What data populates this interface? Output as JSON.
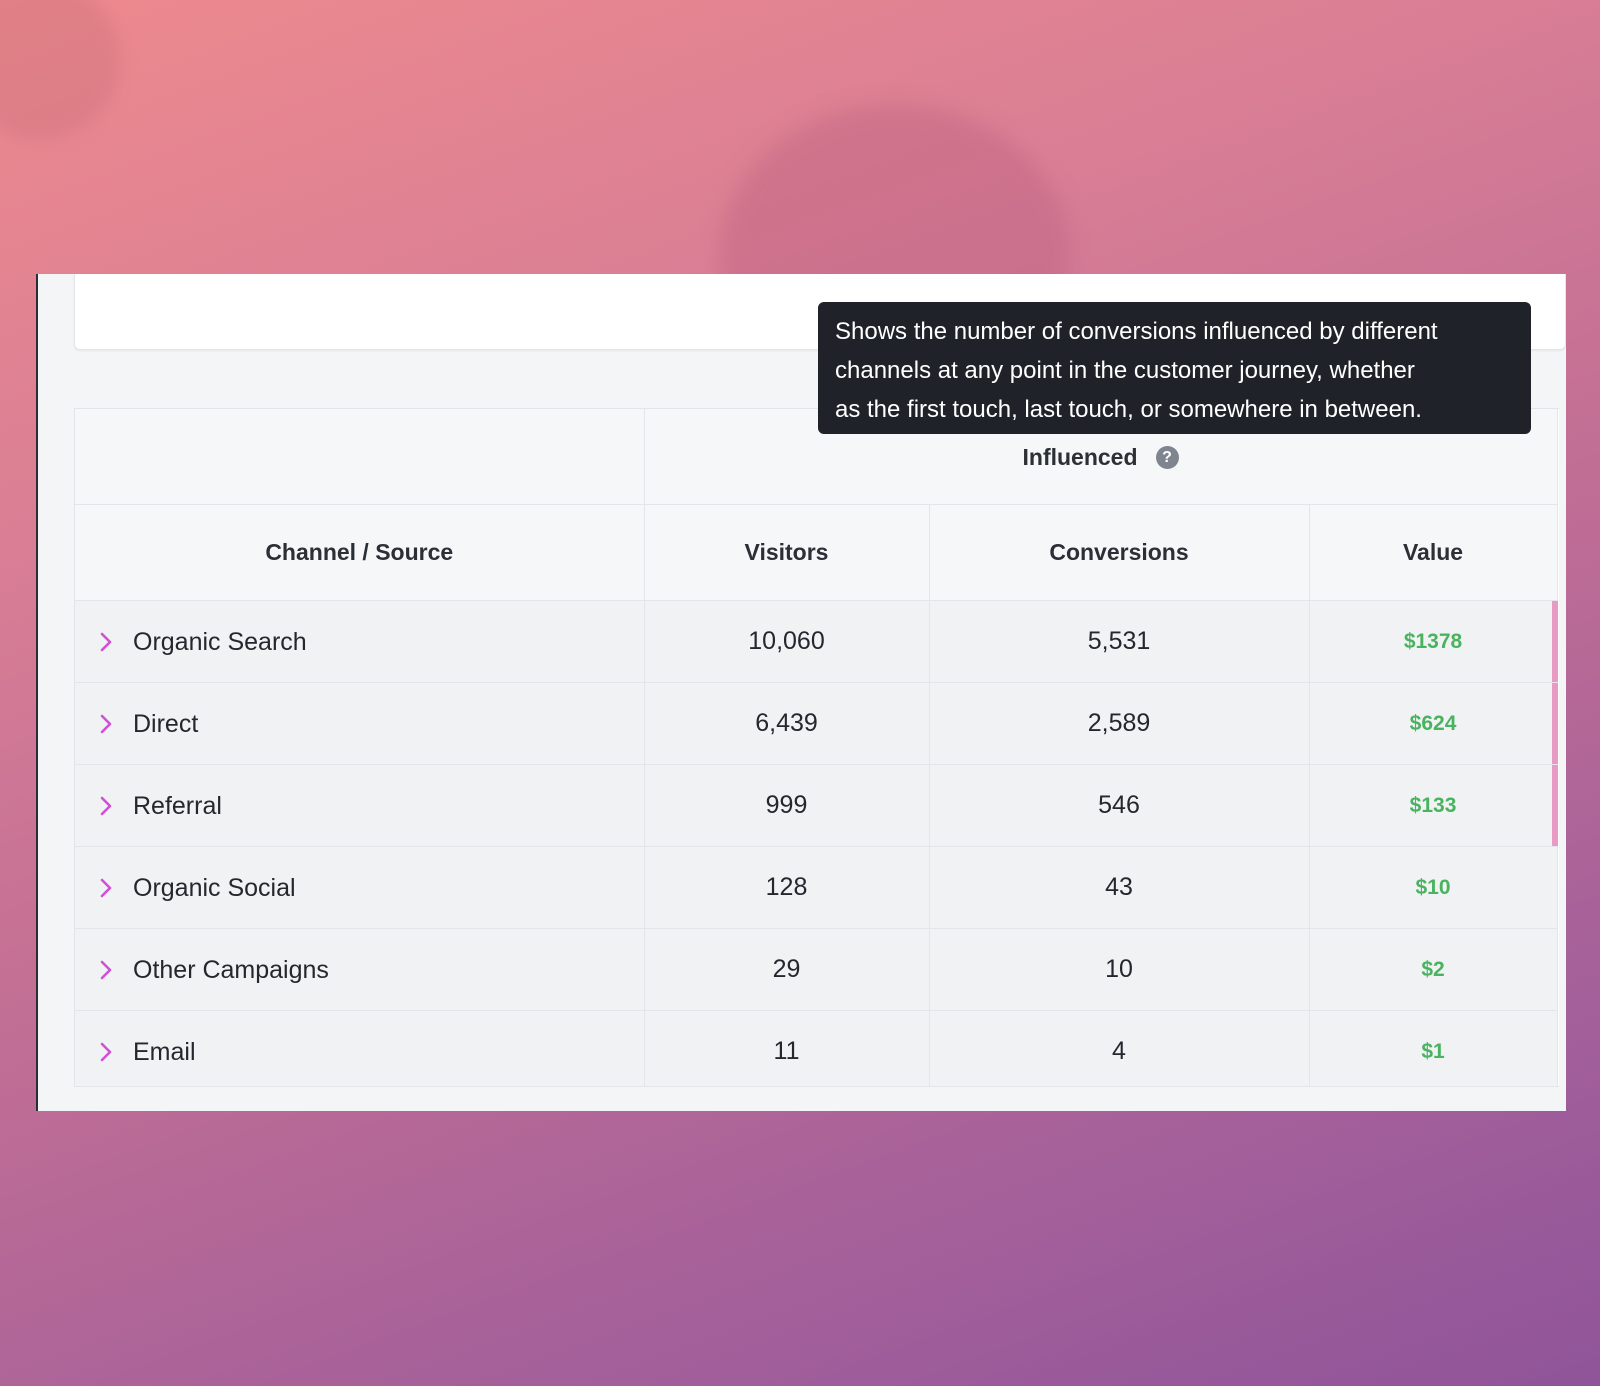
{
  "table": {
    "group_header": "Influenced",
    "help_icon": "question-circle-icon",
    "columns": [
      "Channel / Source",
      "Visitors",
      "Conversions",
      "Value"
    ],
    "rows": [
      {
        "name": "Organic Search",
        "visitors": "10,060",
        "conversions": "5,531",
        "value": "$1378",
        "bar": true
      },
      {
        "name": "Direct",
        "visitors": "6,439",
        "conversions": "2,589",
        "value": "$624",
        "bar": true
      },
      {
        "name": "Referral",
        "visitors": "999",
        "conversions": "546",
        "value": "$133",
        "bar": true
      },
      {
        "name": "Organic Social",
        "visitors": "128",
        "conversions": "43",
        "value": "$10",
        "bar": false
      },
      {
        "name": "Other Campaigns",
        "visitors": "29",
        "conversions": "10",
        "value": "$2",
        "bar": false
      },
      {
        "name": "Email",
        "visitors": "11",
        "conversions": "4",
        "value": "$1",
        "bar": false
      }
    ]
  },
  "tooltip": {
    "line1": "Shows the number of conversions influenced by different",
    "line2": "channels at any point in the customer journey, whether",
    "line3": "as the first touch, last touch, or somewhere in between."
  },
  "colors": {
    "accent_chevron": "#d24fd8",
    "value_green": "#4ab35f",
    "tooltip_bg": "#1f2329"
  }
}
